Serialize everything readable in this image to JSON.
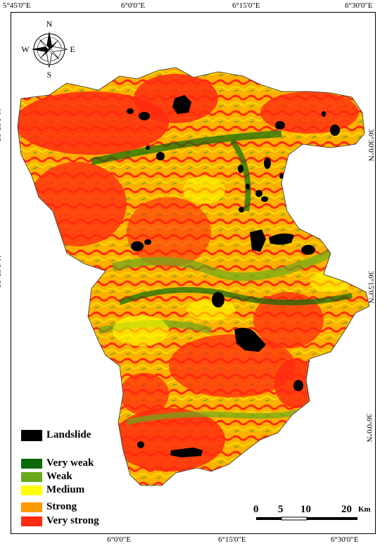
{
  "map": {
    "longitude_ticks": [
      "5°45'0\"E",
      "6°0'0\"E",
      "6°15'0\"E",
      "6°30'0\"E"
    ],
    "latitude_ticks": [
      "36°30'0\"N",
      "36°15'0\"N",
      "36°0'0\"N"
    ],
    "compass": {
      "north": "N",
      "south": "S",
      "east": "E",
      "west": "W"
    },
    "legend": [
      {
        "label": "Landslide",
        "color": "#000000"
      },
      {
        "label": "Very weak",
        "color": "#0b6a0b"
      },
      {
        "label": "Weak",
        "color": "#6aaa1a"
      },
      {
        "label": "Medium",
        "color": "#ffff00"
      },
      {
        "label": "Strong",
        "color": "#ff9a00"
      },
      {
        "label": "Very strong",
        "color": "#ff2a10"
      }
    ],
    "scale": {
      "labels": [
        "0",
        "5",
        "10",
        "20"
      ],
      "unit": "Km"
    }
  }
}
